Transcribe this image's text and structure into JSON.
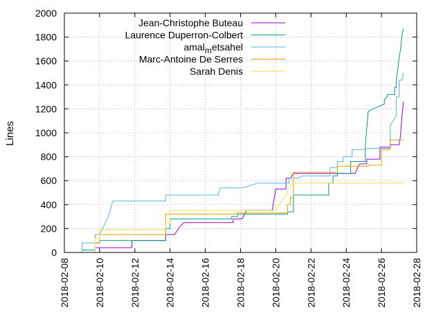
{
  "chart_data": {
    "type": "line",
    "title": "",
    "xlabel": "",
    "ylabel": "Lines",
    "x_axis": {
      "type": "date",
      "range": [
        "2018-02-08",
        "2018-02-28"
      ],
      "ticks": [
        "2018-02-08",
        "2018-02-10",
        "2018-02-12",
        "2018-02-14",
        "2018-02-16",
        "2018-02-18",
        "2018-02-20",
        "2018-02-22",
        "2018-02-24",
        "2018-02-26",
        "2018-02-28"
      ]
    },
    "y_axis": {
      "range": [
        0,
        2000
      ],
      "ticks": [
        "0",
        "200",
        "400",
        "600",
        "800",
        "1000",
        "1200",
        "1400",
        "1600",
        "1800",
        "2000"
      ]
    },
    "grid": true,
    "legend_position": "top-right",
    "series": [
      {
        "name": "Jean-Christophe Buteau",
        "color": "#9400d3",
        "points": [
          [
            "2018-02-08T12:00",
            0
          ],
          [
            "2018-02-09T18:00",
            0
          ],
          [
            "2018-02-09T18:00",
            40
          ],
          [
            "2018-02-11T20:00",
            40
          ],
          [
            "2018-02-11T20:00",
            100
          ],
          [
            "2018-02-13T18:00",
            100
          ],
          [
            "2018-02-13T18:00",
            150
          ],
          [
            "2018-02-14T06:00",
            150
          ],
          [
            "2018-02-14T14:00",
            220
          ],
          [
            "2018-02-14T19:00",
            250
          ],
          [
            "2018-02-17T14:00",
            250
          ],
          [
            "2018-02-17T14:00",
            280
          ],
          [
            "2018-02-18T02:00",
            280
          ],
          [
            "2018-02-18T08:00",
            350
          ],
          [
            "2018-02-19T19:00",
            350
          ],
          [
            "2018-02-20T00:00",
            530
          ],
          [
            "2018-02-20T14:00",
            530
          ],
          [
            "2018-02-20T14:00",
            620
          ],
          [
            "2018-02-20T20:00",
            620
          ],
          [
            "2018-02-21T00:00",
            660
          ],
          [
            "2018-02-24T12:00",
            660
          ],
          [
            "2018-02-24T18:00",
            740
          ],
          [
            "2018-02-25T04:00",
            740
          ],
          [
            "2018-02-25T04:00",
            780
          ],
          [
            "2018-02-25T22:00",
            780
          ],
          [
            "2018-02-25T22:00",
            880
          ],
          [
            "2018-02-26T12:00",
            880
          ],
          [
            "2018-02-26T12:00",
            900
          ],
          [
            "2018-02-27T00:00",
            900
          ],
          [
            "2018-02-27T02:00",
            980
          ],
          [
            "2018-02-27T04:00",
            1150
          ],
          [
            "2018-02-27T06:00",
            1260
          ]
        ]
      },
      {
        "name": "Laurence Duperron-Colbert",
        "color": "#009e73",
        "points": [
          [
            "2018-02-08T12:00",
            0
          ],
          [
            "2018-02-09T00:00",
            0
          ],
          [
            "2018-02-09T00:00",
            20
          ],
          [
            "2018-02-09T18:00",
            20
          ],
          [
            "2018-02-09T18:00",
            80
          ],
          [
            "2018-02-10T00:00",
            80
          ],
          [
            "2018-02-10T00:00",
            100
          ],
          [
            "2018-02-13T18:00",
            100
          ],
          [
            "2018-02-13T18:00",
            200
          ],
          [
            "2018-02-14T00:00",
            200
          ],
          [
            "2018-02-14T00:00",
            280
          ],
          [
            "2018-02-17T12:00",
            280
          ],
          [
            "2018-02-17T12:00",
            300
          ],
          [
            "2018-02-17T20:00",
            300
          ],
          [
            "2018-02-17T20:00",
            320
          ],
          [
            "2018-02-20T16:00",
            320
          ],
          [
            "2018-02-20T16:00",
            340
          ],
          [
            "2018-02-21T00:00",
            340
          ],
          [
            "2018-02-21T00:00",
            480
          ],
          [
            "2018-02-23T00:00",
            480
          ],
          [
            "2018-02-23T00:00",
            580
          ],
          [
            "2018-02-23T06:00",
            580
          ],
          [
            "2018-02-23T06:00",
            640
          ],
          [
            "2018-02-23T12:00",
            640
          ],
          [
            "2018-02-23T12:00",
            660
          ],
          [
            "2018-02-24T06:00",
            660
          ],
          [
            "2018-02-24T06:00",
            760
          ],
          [
            "2018-02-25T02:00",
            760
          ],
          [
            "2018-02-25T02:00",
            900
          ],
          [
            "2018-02-25T06:00",
            1180
          ],
          [
            "2018-02-25T12:00",
            1200
          ],
          [
            "2018-02-25T20:00",
            1220
          ],
          [
            "2018-02-26T04:00",
            1240
          ],
          [
            "2018-02-26T04:00",
            1280
          ],
          [
            "2018-02-26T08:00",
            1300
          ],
          [
            "2018-02-26T08:00",
            1320
          ],
          [
            "2018-02-26T18:00",
            1320
          ],
          [
            "2018-02-26T18:00",
            1380
          ],
          [
            "2018-02-26T20:00",
            1380
          ],
          [
            "2018-02-26T20:00",
            1440
          ],
          [
            "2018-02-26T22:00",
            1520
          ],
          [
            "2018-02-27T00:00",
            1620
          ],
          [
            "2018-02-27T02:00",
            1700
          ],
          [
            "2018-02-27T04:00",
            1820
          ],
          [
            "2018-02-27T06:00",
            1870
          ]
        ]
      },
      {
        "name": "amal_metsahel",
        "color": "#56b4e9",
        "points": [
          [
            "2018-02-08T12:00",
            0
          ],
          [
            "2018-02-09T00:00",
            0
          ],
          [
            "2018-02-09T00:00",
            80
          ],
          [
            "2018-02-09T18:00",
            80
          ],
          [
            "2018-02-09T18:00",
            150
          ],
          [
            "2018-02-10T00:00",
            150
          ],
          [
            "2018-02-10T12:00",
            300
          ],
          [
            "2018-02-10T18:00",
            430
          ],
          [
            "2018-02-13T18:00",
            430
          ],
          [
            "2018-02-13T18:00",
            480
          ],
          [
            "2018-02-16T18:00",
            480
          ],
          [
            "2018-02-16T18:00",
            490
          ],
          [
            "2018-02-16T20:00",
            540
          ],
          [
            "2018-02-18T02:00",
            540
          ],
          [
            "2018-02-19T00:00",
            580
          ],
          [
            "2018-02-20T18:00",
            580
          ],
          [
            "2018-02-20T18:00",
            620
          ],
          [
            "2018-02-21T06:00",
            620
          ],
          [
            "2018-02-21T12:00",
            640
          ],
          [
            "2018-02-23T02:00",
            640
          ],
          [
            "2018-02-23T02:00",
            710
          ],
          [
            "2018-02-23T12:00",
            710
          ],
          [
            "2018-02-23T12:00",
            760
          ],
          [
            "2018-02-23T20:00",
            760
          ],
          [
            "2018-02-23T20:00",
            800
          ],
          [
            "2018-02-24T08:00",
            800
          ],
          [
            "2018-02-24T08:00",
            860
          ],
          [
            "2018-02-25T00:00",
            860
          ],
          [
            "2018-02-25T06:00",
            870
          ],
          [
            "2018-02-26T12:00",
            870
          ],
          [
            "2018-02-26T12:00",
            1060
          ],
          [
            "2018-02-26T20:00",
            1140
          ],
          [
            "2018-02-26T20:00",
            1300
          ],
          [
            "2018-02-27T00:00",
            1300
          ],
          [
            "2018-02-27T00:00",
            1440
          ],
          [
            "2018-02-27T04:00",
            1440
          ],
          [
            "2018-02-27T06:00",
            1500
          ]
        ]
      },
      {
        "name": "Marc-Antoine De Serres",
        "color": "#e69f00",
        "points": [
          [
            "2018-02-08T12:00",
            0
          ],
          [
            "2018-02-09T18:00",
            0
          ],
          [
            "2018-02-09T18:00",
            80
          ],
          [
            "2018-02-10T00:00",
            80
          ],
          [
            "2018-02-10T00:00",
            150
          ],
          [
            "2018-02-13T18:00",
            150
          ],
          [
            "2018-02-13T18:00",
            320
          ],
          [
            "2018-02-17T18:00",
            320
          ],
          [
            "2018-02-17T18:00",
            330
          ],
          [
            "2018-02-20T16:00",
            330
          ],
          [
            "2018-02-20T16:00",
            400
          ],
          [
            "2018-02-20T20:00",
            400
          ],
          [
            "2018-02-20T20:00",
            460
          ],
          [
            "2018-02-21T00:00",
            460
          ],
          [
            "2018-02-21T00:00",
            670
          ],
          [
            "2018-02-23T12:00",
            670
          ],
          [
            "2018-02-23T12:00",
            720
          ],
          [
            "2018-02-25T06:00",
            720
          ],
          [
            "2018-02-25T06:00",
            730
          ],
          [
            "2018-02-26T00:00",
            730
          ],
          [
            "2018-02-26T00:00",
            860
          ],
          [
            "2018-02-26T12:00",
            860
          ],
          [
            "2018-02-26T12:00",
            940
          ],
          [
            "2018-02-27T06:00",
            940
          ]
        ]
      },
      {
        "name": "Sarah Denis",
        "color": "#f0e442",
        "points": [
          [
            "2018-02-08T12:00",
            0
          ],
          [
            "2018-02-09T18:00",
            0
          ],
          [
            "2018-02-09T18:00",
            120
          ],
          [
            "2018-02-10T00:00",
            120
          ],
          [
            "2018-02-10T00:00",
            190
          ],
          [
            "2018-02-13T18:00",
            190
          ],
          [
            "2018-02-13T18:00",
            240
          ],
          [
            "2018-02-14T00:00",
            240
          ],
          [
            "2018-02-14T00:00",
            350
          ],
          [
            "2018-02-20T00:00",
            350
          ],
          [
            "2018-02-20T08:00",
            430
          ],
          [
            "2018-02-20T14:00",
            480
          ],
          [
            "2018-02-20T16:00",
            520
          ],
          [
            "2018-02-21T00:00",
            580
          ],
          [
            "2018-02-27T06:00",
            580
          ]
        ]
      }
    ]
  }
}
